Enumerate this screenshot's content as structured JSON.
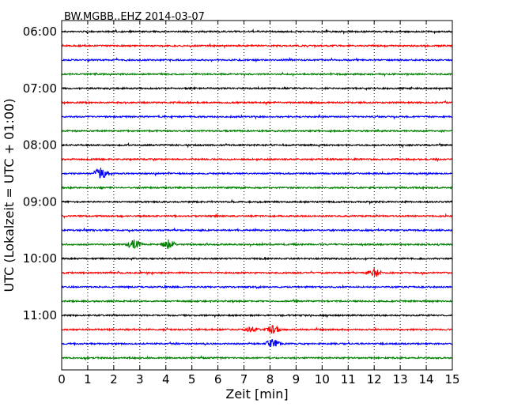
{
  "chart_data": {
    "type": "line",
    "chart_kind": "helicorder",
    "title": "BW.MGBB..EHZ 2014-03-07",
    "xlabel": "Zeit  [min]",
    "ylabel": "UTC (Lokalzeit = UTC + 01:00)",
    "xlim": [
      0,
      15
    ],
    "x_ticks": [
      0,
      1,
      2,
      3,
      4,
      5,
      6,
      7,
      8,
      9,
      10,
      11,
      12,
      13,
      14,
      15
    ],
    "x_tick_labels": [
      "0",
      "1",
      "2",
      "3",
      "4",
      "5",
      "6",
      "7",
      "8",
      "9",
      "10",
      "11",
      "12",
      "13",
      "14",
      "15"
    ],
    "y_tick_labels": [
      "06:00",
      "07:00",
      "08:00",
      "09:00",
      "10:00",
      "11:00"
    ],
    "grid": "vertical dotted at each minute",
    "trace_colors": [
      "#000000",
      "#ff0000",
      "#0000ff",
      "#008000"
    ],
    "trace_start_times": [
      "06:00",
      "06:15",
      "06:30",
      "06:45",
      "07:00",
      "07:15",
      "07:30",
      "07:45",
      "08:00",
      "08:15",
      "08:30",
      "08:45",
      "09:00",
      "09:15",
      "09:30",
      "09:45",
      "10:00",
      "10:15",
      "10:30",
      "10:45",
      "11:00",
      "11:15",
      "11:30",
      "11:45"
    ],
    "events": [
      {
        "trace": "08:30",
        "minute": 1.5,
        "amplitude": "large"
      },
      {
        "trace": "09:45",
        "minute": 2.8,
        "amplitude": "medium"
      },
      {
        "trace": "09:45",
        "minute": 4.1,
        "amplitude": "medium"
      },
      {
        "trace": "10:15",
        "minute": 12.0,
        "amplitude": "medium"
      },
      {
        "trace": "11:15",
        "minute": 7.3,
        "amplitude": "small"
      },
      {
        "trace": "11:15",
        "minute": 8.1,
        "amplitude": "medium"
      },
      {
        "trace": "11:30",
        "minute": 8.1,
        "amplitude": "medium"
      }
    ]
  }
}
